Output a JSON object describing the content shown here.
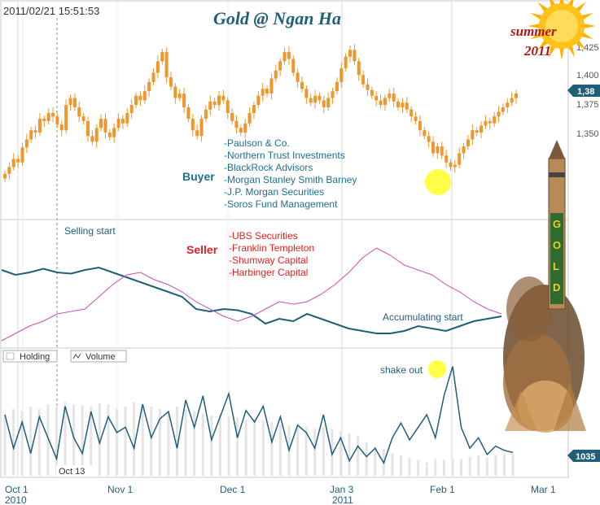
{
  "header": {
    "timestamp": "2011/02/21 15:51:53",
    "title": "Gold @ Ngan Ha",
    "badge_line1": "summer",
    "badge_line2": "2011"
  },
  "colors": {
    "candle": "#f0962a",
    "institutional": "#1f5f7a",
    "retail": "#c84fb4",
    "volume_line": "#1f5f7a",
    "buyer_text": "#1f6f8f",
    "seller_text": "#e02020",
    "highlight": "#ffff33",
    "grid": "#d8d8d8"
  },
  "legend": {
    "holding_label": "Holding",
    "volume_label": "Volume"
  },
  "annotations": {
    "buyer_title": "Buyer",
    "buyers": [
      "-Paulson & Co.",
      "-Northern Trust Investments",
      "-BlackRock Advisors",
      "-Morgan Stanley Smith Barney",
      "-J.P. Morgan Securities",
      "-Soros Fund Management"
    ],
    "seller_title": "Seller",
    "sellers": [
      "-UBS Securities",
      "-Franklin Templeton",
      "-Shumway Capital",
      "-Harbinger Capital"
    ],
    "selling_start": "Selling start",
    "accumulating_start": "Accumulating start",
    "shake_out": "shake out",
    "crosshair_date": "Oct 13"
  },
  "rocket_label": "GOLD",
  "chart_data": [
    {
      "type": "candlestick",
      "y_ticks": [
        "1,425",
        "1,400",
        "1,375",
        "1,350"
      ],
      "price_range": [
        1290,
        1435
      ],
      "last_price_label": "1,38",
      "closes": [
        1312,
        1318,
        1325,
        1322,
        1335,
        1342,
        1350,
        1348,
        1360,
        1358,
        1365,
        1362,
        1355,
        1350,
        1372,
        1378,
        1370,
        1362,
        1358,
        1345,
        1340,
        1352,
        1360,
        1348,
        1344,
        1352,
        1360,
        1356,
        1365,
        1372,
        1380,
        1376,
        1384,
        1392,
        1400,
        1410,
        1418,
        1396,
        1388,
        1378,
        1382,
        1370,
        1360,
        1350,
        1345,
        1360,
        1368,
        1375,
        1372,
        1380,
        1376,
        1365,
        1358,
        1352,
        1348,
        1356,
        1365,
        1372,
        1380,
        1386,
        1382,
        1395,
        1402,
        1410,
        1418,
        1412,
        1400,
        1392,
        1386,
        1378,
        1374,
        1380,
        1376,
        1370,
        1378,
        1384,
        1392,
        1404,
        1414,
        1420,
        1410,
        1398,
        1390,
        1385,
        1380,
        1376,
        1372,
        1378,
        1382,
        1375,
        1370,
        1374,
        1368,
        1362,
        1358,
        1350,
        1345,
        1340,
        1330,
        1336,
        1328,
        1322,
        1318,
        1320,
        1330,
        1336,
        1342,
        1350,
        1348,
        1354,
        1358,
        1356,
        1362,
        1366,
        1370,
        1374,
        1378,
        1382
      ],
      "x_tick_labels": [
        "Oct 1",
        "Nov 1",
        "Dec 1",
        "Jan 3",
        "Feb 1",
        "Mar 1"
      ],
      "x_year_labels": [
        "2010",
        "2011"
      ]
    },
    {
      "type": "line",
      "series": [
        {
          "values": [
            0.62,
            0.58,
            0.6,
            0.63,
            0.6,
            0.59,
            0.62,
            0.64,
            0.6,
            0.56,
            0.52,
            0.48,
            0.44,
            0.4,
            0.3,
            0.28,
            0.3,
            0.29,
            0.26,
            0.18,
            0.22,
            0.2,
            0.26,
            0.22,
            0.18,
            0.14,
            0.12,
            0.1,
            0.1,
            0.12,
            0.16,
            0.14,
            0.12,
            0.16,
            0.2,
            0.22,
            0.24
          ]
        },
        {
          "values": [
            0.04,
            0.1,
            0.16,
            0.2,
            0.26,
            0.28,
            0.3,
            0.4,
            0.5,
            0.58,
            0.6,
            0.54,
            0.5,
            0.44,
            0.36,
            0.3,
            0.24,
            0.2,
            0.24,
            0.3,
            0.36,
            0.34,
            0.36,
            0.42,
            0.5,
            0.6,
            0.72,
            0.8,
            0.74,
            0.66,
            0.62,
            0.58,
            0.5,
            0.44,
            0.36,
            0.3,
            0.26
          ]
        }
      ]
    },
    {
      "type": "bar+line",
      "volume_label": "1035",
      "bars": [
        0.55,
        0.6,
        0.58,
        0.62,
        0.6,
        0.64,
        0.62,
        0.66,
        0.64,
        0.63,
        0.62,
        0.65,
        0.64,
        0.6,
        0.62,
        0.66,
        0.64,
        0.62,
        0.6,
        0.58,
        0.62,
        0.6,
        0.58,
        0.56,
        0.54,
        0.55,
        0.53,
        0.52,
        0.5,
        0.52,
        0.5,
        0.48,
        0.46,
        0.45,
        0.46,
        0.44,
        0.42,
        0.44,
        0.42,
        0.4,
        0.38,
        0.36,
        0.3,
        0.26,
        0.24,
        0.2,
        0.18,
        0.16,
        0.14,
        0.12,
        0.15,
        0.14,
        0.16,
        0.15,
        0.17,
        0.18,
        0.16,
        0.18,
        0.2,
        0.2
      ],
      "volume": [
        0.52,
        0.2,
        0.45,
        0.15,
        0.5,
        0.3,
        0.1,
        0.6,
        0.3,
        0.15,
        0.55,
        0.25,
        0.5,
        0.35,
        0.4,
        0.2,
        0.62,
        0.3,
        0.48,
        0.55,
        0.2,
        0.66,
        0.4,
        0.7,
        0.28,
        0.5,
        0.72,
        0.3,
        0.56,
        0.45,
        0.6,
        0.26,
        0.5,
        0.18,
        0.42,
        0.35,
        0.2,
        0.52,
        0.14,
        0.3,
        0.08,
        0.22,
        0.12,
        0.2,
        0.06,
        0.3,
        0.44,
        0.28,
        0.4,
        0.52,
        0.3,
        0.7,
        0.98,
        0.4,
        0.2,
        0.3,
        0.14,
        0.22,
        0.18,
        0.16
      ]
    }
  ]
}
